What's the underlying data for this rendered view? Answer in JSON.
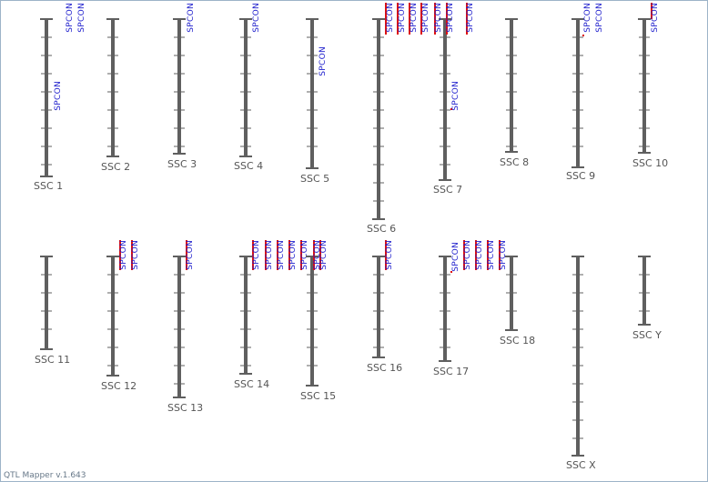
{
  "app": {
    "version_label": "QTL Mapper v.1.643"
  },
  "colors": {
    "chromosome": "#5f5f5f",
    "qtl_bar": "#dd1111",
    "qtl_label": "#1c1ccc",
    "label": "#555555",
    "border": "#9db3c8"
  },
  "qtl_trait": "SPCON",
  "chromosomes": [
    {
      "name": "SSC 1",
      "qtls": [
        {
          "label": "SPCON"
        },
        {
          "label": "SPCON"
        },
        {
          "label": "SPCON"
        }
      ]
    },
    {
      "name": "SSC 2",
      "qtls": []
    },
    {
      "name": "SSC 3",
      "qtls": [
        {
          "label": "SPCON"
        }
      ]
    },
    {
      "name": "SSC 4",
      "qtls": [
        {
          "label": "SPCON"
        }
      ]
    },
    {
      "name": "SSC 5",
      "qtls": [
        {
          "label": "SPCON"
        }
      ]
    },
    {
      "name": "SSC 6",
      "qtls": [
        {
          "label": "SPCON"
        },
        {
          "label": "SPCON"
        },
        {
          "label": "SPCON"
        },
        {
          "label": "SPCON"
        }
      ]
    },
    {
      "name": "SSC 7",
      "qtls": [
        {
          "label": "SPCON"
        },
        {
          "label": "SPCON"
        },
        {
          "label": "SPCON"
        },
        {
          "label": "SPCON"
        }
      ]
    },
    {
      "name": "SSC 8",
      "qtls": []
    },
    {
      "name": "SSC 9",
      "qtls": [
        {
          "label": "SPCON"
        },
        {
          "label": "SPCON"
        }
      ]
    },
    {
      "name": "SSC 10",
      "qtls": [
        {
          "label": "SPCON"
        }
      ]
    },
    {
      "name": "SSC 11",
      "qtls": []
    },
    {
      "name": "SSC 12",
      "qtls": [
        {
          "label": "SPCON"
        },
        {
          "label": "SPCON"
        }
      ]
    },
    {
      "name": "SSC 13",
      "qtls": [
        {
          "label": "SPCON"
        }
      ]
    },
    {
      "name": "SSC 14",
      "qtls": [
        {
          "label": "SPCON"
        },
        {
          "label": "SPCON"
        },
        {
          "label": "SPCON"
        },
        {
          "label": "SPCON"
        },
        {
          "label": "SPCON"
        }
      ]
    },
    {
      "name": "SSC 15",
      "qtls": [
        {
          "label": "SPCON"
        },
        {
          "label": "SPCON"
        }
      ]
    },
    {
      "name": "SSC 16",
      "qtls": [
        {
          "label": "SPCON"
        }
      ]
    },
    {
      "name": "SSC 17",
      "qtls": [
        {
          "label": "SPCON"
        },
        {
          "label": "SPCON"
        },
        {
          "label": "SPCON"
        },
        {
          "label": "SPCON"
        },
        {
          "label": "SPCON"
        }
      ]
    },
    {
      "name": "SSC 18",
      "qtls": []
    },
    {
      "name": "SSC X",
      "qtls": []
    },
    {
      "name": "SSC Y",
      "qtls": []
    }
  ]
}
